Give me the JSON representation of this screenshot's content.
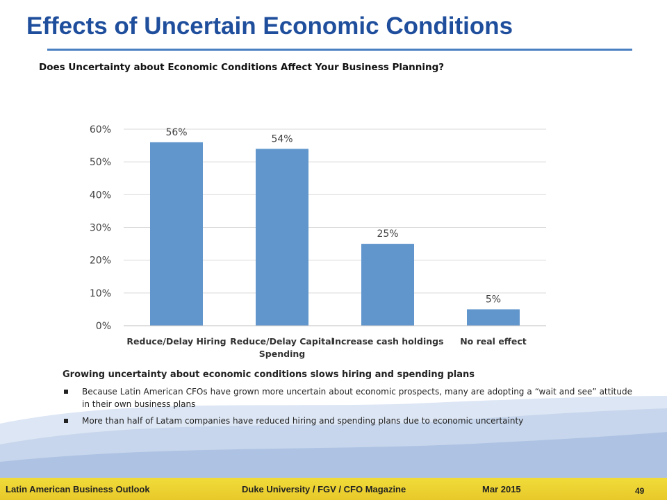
{
  "slide": {
    "title": "Effects of Uncertain Economic Conditions",
    "subtitle": "Does Uncertainty about Economic Conditions Affect Your Business Planning?"
  },
  "chart_data": {
    "type": "bar",
    "categories": [
      "Reduce/Delay Hiring",
      "Reduce/Delay Capital Spending",
      "Increase cash holdings",
      "No real effect"
    ],
    "category_label_lines": [
      [
        "Reduce/Delay Hiring"
      ],
      [
        "Reduce/Delay Capital",
        "Spending"
      ],
      [
        "Increase cash holdings"
      ],
      [
        "No real effect"
      ]
    ],
    "values": [
      56,
      54,
      25,
      5
    ],
    "data_labels": [
      "56%",
      "54%",
      "25%",
      "5%"
    ],
    "ylim": [
      0,
      60
    ],
    "yticks": [
      0,
      10,
      20,
      30,
      40,
      50,
      60
    ],
    "ytick_labels": [
      "0%",
      "10%",
      "20%",
      "30%",
      "40%",
      "50%",
      "60%"
    ],
    "grid": true,
    "bar_color": "#6196cc",
    "title": "",
    "xlabel": "",
    "ylabel": ""
  },
  "summary": {
    "heading": "Growing uncertainty about economic conditions slows hiring and spending plans",
    "bullets": [
      "Because Latin American CFOs have grown more uncertain about economic prospects, many are adopting a “wait and see” attitude in their own business plans",
      "More than half of Latam companies have reduced hiring and spending plans due to economic uncertainty"
    ]
  },
  "footer": {
    "left": "Latin American Business Outlook",
    "center": "Duke University / FGV / CFO Magazine",
    "date": "Mar 2015",
    "page_number": "49"
  },
  "colors": {
    "title": "#1f4e9c",
    "rule": "#4a7fc1",
    "footer_band": "#e8c92a",
    "wave": "#c7d6ec"
  }
}
